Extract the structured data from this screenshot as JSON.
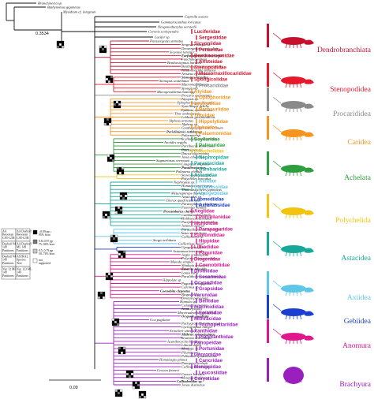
{
  "tree": {
    "outgroup_tips": [
      "Branchinecta sp.",
      "Bathynomus giganteus",
      "Mysidium cf. integrum",
      "Caprella scaura",
      "Gammaracanthus loricatus",
      "Neogonodactylus oerstedii",
      "Coronis scolopendra",
      "Lucifer sp."
    ],
    "tips": [
      "Parasergestes armatus",
      "Sergestes atlanticus",
      "Deosergestes corniculum",
      "Sicyonia lancifer",
      "Farfantepenaeus duorarum",
      "Funchalia villosa",
      "Benthesicymus bartletti",
      "Bentheogennema intermedia",
      "Aristeomorpha foliacea",
      "Aristeus edwardsiana",
      "Stenopus hispidus",
      "Stenopus scutellatus",
      "Macromaxillocaris",
      "Spongicola",
      "Microprosthema manning",
      "Procaris ascensionis",
      "Atyopsis sp.",
      "Oplophorus gracilirostris",
      "Systellaspis debilis",
      "Lysmata amboinensis",
      "Thor amboinensis",
      "Lebbeus groenlandicus",
      "Alpheus armatus",
      "Alpheus sp.",
      "Gnathophyllum americanum",
      "Periclimenes rathbunae",
      "Palaemon sp.",
      "Scyllarides squammosus",
      "Arctides regalis",
      "Parribacus antarcticus",
      "Ibacus peronii",
      "Ibacus alticrenatus",
      "Jasus edwardsii",
      "Sagmariasus verreauxi",
      "Linuparus trigonus",
      "Panulirus argus",
      "Palinurus elephas",
      "Stereomastis sculpta",
      "Polycheles baccatus",
      "Nephropsis sp.",
      "Homarus americanus",
      "Thaumastocheles japonicus",
      "Metanephrops thomsoni",
      "Astacoides sp.",
      "Cherax quadricarinatus",
      "Paranephrops planifrons",
      "Faxonius validus",
      "Procambarus clarkii",
      "Cambaroides similis",
      "Hobbseus attenuatus",
      "Pacifastacus leniusculus",
      "Astacus astacus",
      "Paracallianassa laevicauda",
      "Axius serratifrons",
      "Callianassa sp.",
      "Sergio trilobata",
      "Callichirus major",
      "Upogebia affinis",
      "Axianassa intermedia",
      "Aegla uruguayana",
      "Polyonyx biunguiculatus",
      "Munida simplex",
      "Shinkaia crosnieri",
      "Emerita talpoida",
      "Lomis hirta",
      "Paralithodes camtschaticus",
      "Hippolyte sp.",
      "Pagurus bernhardus",
      "Calcinus sp.",
      "Coenobita clypeatus",
      "Birgus latro",
      "Dromia personata",
      "Homola sp.",
      "Calappa japonica",
      "Aratus pisonii",
      "Moreiradromia antillensis",
      "Ocypode quadrata",
      "Uca pugilator",
      "Pachygrapsus transversus",
      "Cyclograpsus integer",
      "Eriocheir sinensis",
      "Mithrax spinosissimus",
      "Sesarma reticulatum",
      "Acanthocyclus hassleri",
      "Libinia dubia",
      "Menippe sp.",
      "Pilumnus sp.",
      "Pelbarion spinosissimus",
      "Homalaspis planus",
      "Panopeus herbstii",
      "Callinectes ornatus",
      "Geryon fenneri",
      "Cancer borealis",
      "Menippe nodifrons",
      "Calliadenidae sp.",
      "Jonas distinctus"
    ]
  },
  "families": [
    {
      "name": "Luciferidae",
      "color": "#c8102e"
    },
    {
      "name": "Sergestidae",
      "color": "#c8102e"
    },
    {
      "name": "Sicyoniidae",
      "color": "#c8102e"
    },
    {
      "name": "Penaeidae",
      "color": "#c8102e"
    },
    {
      "name": "Benthesicymidae",
      "color": "#c8102e"
    },
    {
      "name": "Aristeidae",
      "color": "#c8102e"
    },
    {
      "name": "Stenopodidae",
      "color": "#e8192c"
    },
    {
      "name": "Macromaxillocarididae",
      "color": "#e8192c"
    },
    {
      "name": "Spongicolidae",
      "color": "#e8192c"
    },
    {
      "name": "Procarididae",
      "color": "#8a8a8a"
    },
    {
      "name": "Atyidae",
      "color": "#f7941d"
    },
    {
      "name": "Oplophoridae",
      "color": "#f7941d"
    },
    {
      "name": "Lysmatidae",
      "color": "#f7941d"
    },
    {
      "name": "Barbouriidae",
      "color": "#f7941d"
    },
    {
      "name": "Thoridae",
      "color": "#f7941d"
    },
    {
      "name": "Hippolytidae",
      "color": "#f7941d"
    },
    {
      "name": "Alpheidae",
      "color": "#f7941d"
    },
    {
      "name": "Palaemonidae",
      "color": "#f7941d"
    },
    {
      "name": "Scyllaridae",
      "color": "#2e9e3e"
    },
    {
      "name": "Palinuridae",
      "color": "#2e9e3e"
    },
    {
      "name": "Polychelidae",
      "color": "#f2c40f"
    },
    {
      "name": "Nephropidae",
      "color": "#18a89a"
    },
    {
      "name": "Parastacidae",
      "color": "#18a89a"
    },
    {
      "name": "Cambaridae",
      "color": "#18a89a"
    },
    {
      "name": "Astacidae",
      "color": "#18a89a"
    },
    {
      "name": "Axiidae",
      "color": "#5ec6e8"
    },
    {
      "name": "Callianassidae",
      "color": "#5ec6e8"
    },
    {
      "name": "Upogebiidae",
      "color": "#5ec6e8"
    },
    {
      "name": "Laomediidae",
      "color": "#1a3fd1"
    },
    {
      "name": "Axianassidae",
      "color": "#1a3fd1"
    },
    {
      "name": "Aeglidae",
      "color": "#e0168c"
    },
    {
      "name": "Porcellanidae",
      "color": "#e0168c"
    },
    {
      "name": "Munididae",
      "color": "#e0168c"
    },
    {
      "name": "Parapaguridae",
      "color": "#e0168c"
    },
    {
      "name": "Eumunididae",
      "color": "#e0168c"
    },
    {
      "name": "Hippidae",
      "color": "#e0168c"
    },
    {
      "name": "Lithodidae",
      "color": "#e0168c"
    },
    {
      "name": "Paguridae",
      "color": "#e0168c"
    },
    {
      "name": "Diogenidae",
      "color": "#e0168c"
    },
    {
      "name": "Coenobitidae",
      "color": "#e0168c"
    },
    {
      "name": "Dromiidae",
      "color": "#9a1fbf"
    },
    {
      "name": "Sesarmidae",
      "color": "#9a1fbf"
    },
    {
      "name": "Ocypodidae",
      "color": "#9a1fbf"
    },
    {
      "name": "Grapsidae",
      "color": "#9a1fbf"
    },
    {
      "name": "Varunidae",
      "color": "#9a1fbf"
    },
    {
      "name": "Belliidae",
      "color": "#9a1fbf"
    },
    {
      "name": "Inachoididae",
      "color": "#9a1fbf"
    },
    {
      "name": "Epialtidae",
      "color": "#9a1fbf"
    },
    {
      "name": "Mithracidae",
      "color": "#9a1fbf"
    },
    {
      "name": "Trichopeltariidae",
      "color": "#9a1fbf"
    },
    {
      "name": "Xanthidae",
      "color": "#9a1fbf"
    },
    {
      "name": "Platyxanthidae",
      "color": "#9a1fbf"
    },
    {
      "name": "Panopeidae",
      "color": "#9a1fbf"
    },
    {
      "name": "Portunidae",
      "color": "#9a1fbf"
    },
    {
      "name": "Geryonidae",
      "color": "#9a1fbf"
    },
    {
      "name": "Cancridae",
      "color": "#9a1fbf"
    },
    {
      "name": "Menippidae",
      "color": "#9a1fbf"
    },
    {
      "name": "Leucosiidae",
      "color": "#9a1fbf"
    },
    {
      "name": "Corystidae",
      "color": "#9a1fbf"
    }
  ],
  "infraorders": [
    {
      "name": "Dendrobranchiata",
      "color": "#c8102e"
    },
    {
      "name": "Stenopodidea",
      "color": "#e8192c"
    },
    {
      "name": "Procarididea",
      "color": "#8a8a8a"
    },
    {
      "name": "Caridea",
      "color": "#f7941d"
    },
    {
      "name": "Achelata",
      "color": "#2e9e3e"
    },
    {
      "name": "Polychelida",
      "color": "#f2c40f"
    },
    {
      "name": "Astacidea",
      "color": "#18a89a"
    },
    {
      "name": "Axiidea",
      "color": "#5ec6e8"
    },
    {
      "name": "Gebiidea",
      "color": "#1a3fd1"
    },
    {
      "name": "Anomura",
      "color": "#e0168c"
    },
    {
      "name": "Brachyura",
      "color": "#9a1fbf"
    }
  ],
  "branch_length_label": "0.3534",
  "scale_bar_label": "0.09",
  "legend": {
    "grid_cells": [
      "AA Bayesian CAT-GTR",
      "AA Dayhoff Bayesian CAT-GTR",
      "Dayhoff ML 149 Partitions",
      "AA Dayhoff ML 149 Partitions",
      "Dayhoff ML 149 Partitions",
      "ASTRAL Species Tree",
      "Nuc 12 ML 149 Partitions",
      "Nuc 123 ML 149 Partitions",
      "Nuc 12 ML 149 Degen",
      "Nuc 123 ML 149 Degen"
    ],
    "support_key": [
      {
        "label": "≥0.99 pp ≥ 95% boot",
        "color": "#000000"
      },
      {
        "label": "0.8–0.97 pp 75–94% boot",
        "color": "#777777"
      },
      {
        "label": "0.5–0.79 pp 50–74% boot",
        "color": "#c8c8c8"
      },
      {
        "label": "not supported",
        "color": "#ffffff"
      }
    ]
  }
}
